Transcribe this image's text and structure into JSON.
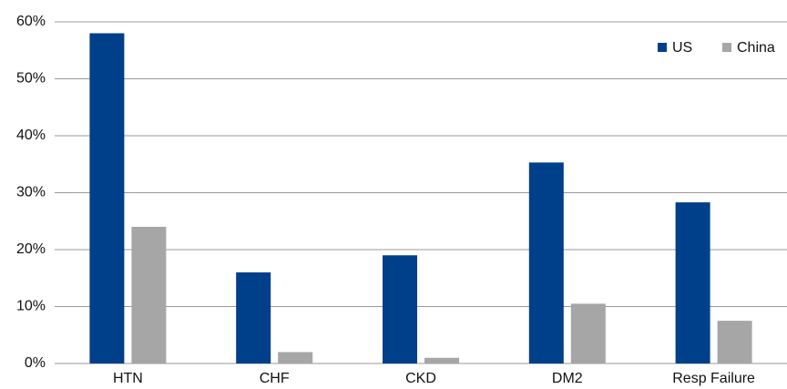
{
  "chart_data": {
    "type": "bar",
    "categories": [
      "HTN",
      "CHF",
      "CKD",
      "DM2",
      "Resp Failure"
    ],
    "series": [
      {
        "name": "US",
        "color": "#003f8a",
        "values": [
          58,
          16,
          19,
          35.3,
          28.3
        ]
      },
      {
        "name": "China",
        "color": "#a6a6a6",
        "values": [
          24,
          2,
          1,
          10.5,
          7.5
        ]
      }
    ],
    "ylim": [
      0,
      60
    ],
    "yticks": [
      {
        "value": 0,
        "label": "0%"
      },
      {
        "value": 10,
        "label": "10%"
      },
      {
        "value": 20,
        "label": "20%"
      },
      {
        "value": 30,
        "label": "30%"
      },
      {
        "value": 40,
        "label": "40%"
      },
      {
        "value": 50,
        "label": "50%"
      },
      {
        "value": 60,
        "label": "60%"
      }
    ],
    "grid": true,
    "legend": "top-right"
  }
}
